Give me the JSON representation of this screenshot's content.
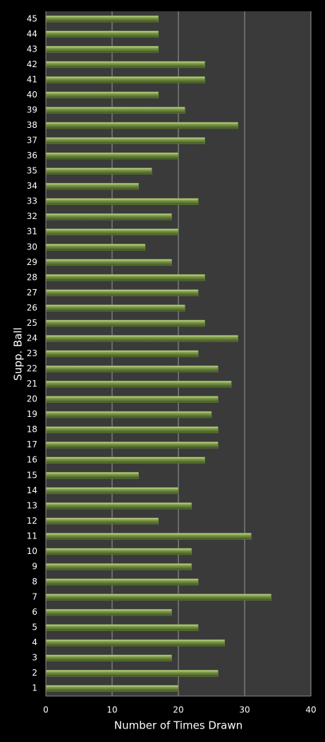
{
  "chart_data": {
    "type": "bar",
    "orientation": "horizontal",
    "x_label": "Number of Times Drawn",
    "y_label": "Supp. Ball",
    "categories": [
      "1",
      "2",
      "3",
      "4",
      "5",
      "6",
      "7",
      "8",
      "9",
      "10",
      "11",
      "12",
      "13",
      "14",
      "15",
      "16",
      "17",
      "18",
      "19",
      "20",
      "21",
      "22",
      "23",
      "24",
      "25",
      "26",
      "27",
      "28",
      "29",
      "30",
      "31",
      "32",
      "33",
      "34",
      "35",
      "36",
      "37",
      "38",
      "39",
      "40",
      "41",
      "42",
      "43",
      "44",
      "45"
    ],
    "values": [
      20,
      26,
      19,
      27,
      23,
      19,
      34,
      23,
      22,
      22,
      31,
      17,
      22,
      20,
      14,
      24,
      26,
      26,
      25,
      26,
      28,
      26,
      23,
      29,
      24,
      21,
      23,
      24,
      19,
      15,
      20,
      19,
      23,
      14,
      16,
      20,
      24,
      29,
      21,
      17,
      24,
      24,
      17,
      17,
      17
    ],
    "color": "#6b8a3a",
    "xlim": [
      0,
      40
    ],
    "xticks": [
      0,
      10,
      20,
      30,
      40
    ],
    "grid": true
  }
}
